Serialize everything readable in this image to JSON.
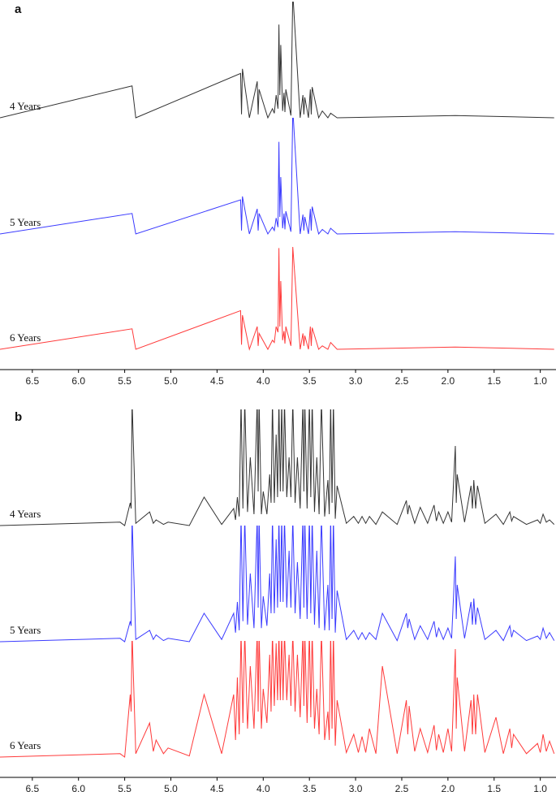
{
  "chart_data": [
    {
      "type": "line",
      "title": "a",
      "x": [
        6.85,
        5.42,
        5.38,
        4.245,
        4.235,
        4.225,
        4.15,
        4.065,
        4.055,
        4.045,
        3.95,
        3.9,
        3.88,
        3.86,
        3.84,
        3.83,
        3.82,
        3.81,
        3.79,
        3.775,
        3.765,
        3.755,
        3.7,
        3.68,
        3.6,
        3.57,
        3.56,
        3.55,
        3.51,
        3.49,
        3.48,
        3.47,
        3.4,
        3.36,
        3.3,
        3.27,
        3.2,
        1.92,
        0.85
      ],
      "series": [
        {
          "name": "4 Years",
          "color": "#333333",
          "values": [
            0,
            28,
            0,
            39,
            3,
            43,
            0,
            32,
            3,
            25,
            0,
            8,
            4,
            20,
            8,
            82,
            20,
            64,
            6,
            22,
            5,
            25,
            2,
            110,
            0,
            20,
            3,
            18,
            0,
            25,
            3,
            27,
            0,
            6,
            0,
            4,
            0,
            2,
            0
          ]
        },
        {
          "name": "5 Years",
          "color": "#3a3aff",
          "values": [
            0,
            18,
            0,
            30,
            3,
            33,
            0,
            22,
            3,
            18,
            0,
            6,
            3,
            14,
            6,
            81,
            15,
            50,
            5,
            18,
            4,
            20,
            2,
            110,
            0,
            17,
            3,
            15,
            0,
            22,
            3,
            24,
            0,
            4,
            0,
            5,
            0,
            2,
            0
          ]
        },
        {
          "name": "6 Years",
          "color": "#ff3a3a",
          "values": [
            0,
            18,
            0,
            34,
            4,
            30,
            0,
            20,
            3,
            14,
            0,
            8,
            6,
            20,
            15,
            89,
            20,
            60,
            8,
            16,
            5,
            20,
            3,
            90,
            0,
            14,
            3,
            12,
            0,
            20,
            3,
            19,
            0,
            3,
            0,
            6,
            0,
            2,
            0
          ]
        }
      ],
      "xlim": [
        6.85,
        0.83
      ],
      "ylim": [
        0,
        100
      ],
      "xticks": [
        6.5,
        {
          "value": 6,
          "label": "6.0"
        },
        5.5,
        {
          "value": 5,
          "label": "5.0"
        },
        4.5,
        {
          "value": 4,
          "label": "4.0"
        },
        3.5,
        {
          "value": 3,
          "label": "3.0"
        },
        2.5,
        {
          "value": 2,
          "label": "2.0"
        },
        1.5,
        {
          "value": 1,
          "label": "1.0"
        }
      ]
    },
    {
      "type": "line",
      "title": "b",
      "x": [
        6.85,
        5.55,
        5.5,
        5.44,
        5.43,
        5.42,
        5.38,
        5.23,
        5.19,
        5.16,
        5.08,
        5.03,
        4.8,
        4.64,
        4.45,
        4.32,
        4.3,
        4.28,
        4.26,
        4.24,
        4.22,
        4.2,
        4.17,
        4.14,
        4.1,
        4.065,
        4.055,
        4.045,
        4.02,
        4.0,
        3.96,
        3.93,
        3.915,
        3.9,
        3.88,
        3.86,
        3.845,
        3.83,
        3.815,
        3.8,
        3.785,
        3.77,
        3.745,
        3.72,
        3.7,
        3.68,
        3.655,
        3.63,
        3.6,
        3.57,
        3.56,
        3.55,
        3.525,
        3.5,
        3.485,
        3.47,
        3.445,
        3.42,
        3.395,
        3.37,
        3.335,
        3.3,
        3.285,
        3.27,
        3.255,
        3.24,
        3.22,
        3.2,
        3.1,
        3.02,
        2.97,
        2.93,
        2.89,
        2.85,
        2.78,
        2.71,
        2.55,
        2.45,
        2.435,
        2.42,
        2.36,
        2.3,
        2.22,
        2.15,
        2.125,
        2.1,
        2.05,
        2.0,
        1.96,
        1.92,
        1.91,
        1.9,
        1.82,
        1.75,
        1.735,
        1.72,
        1.7,
        1.68,
        1.6,
        1.48,
        1.4,
        1.33,
        1.31,
        1.29,
        1.15,
        1.03,
        1.0,
        0.97,
        0.935,
        0.9,
        0.85
      ],
      "series": [
        {
          "name": "4 Years",
          "color": "#333333",
          "values": [
            0,
            3,
            0,
            20,
            15,
            110,
            2,
            12,
            2,
            5,
            1,
            3,
            0,
            25,
            1,
            15,
            5,
            25,
            8,
            110,
            15,
            110,
            12,
            60,
            10,
            110,
            30,
            110,
            10,
            30,
            10,
            45,
            20,
            110,
            20,
            80,
            25,
            110,
            30,
            110,
            30,
            110,
            25,
            60,
            25,
            110,
            20,
            60,
            15,
            110,
            30,
            110,
            15,
            110,
            25,
            110,
            12,
            60,
            10,
            110,
            8,
            40,
            10,
            110,
            20,
            110,
            6,
            35,
            2,
            8,
            2,
            8,
            2,
            8,
            1,
            12,
            1,
            22,
            10,
            18,
            2,
            16,
            2,
            18,
            4,
            12,
            2,
            12,
            3,
            70,
            20,
            45,
            3,
            35,
            15,
            40,
            15,
            35,
            2,
            10,
            1,
            12,
            4,
            8,
            1,
            5,
            2,
            10,
            3,
            5,
            1
          ]
        },
        {
          "name": "5 Years",
          "color": "#3a3aff",
          "values": [
            0,
            3,
            0,
            18,
            14,
            110,
            2,
            10,
            2,
            6,
            1,
            3,
            0,
            25,
            2,
            25,
            8,
            35,
            10,
            110,
            18,
            110,
            15,
            60,
            12,
            110,
            30,
            110,
            12,
            40,
            14,
            60,
            25,
            110,
            25,
            90,
            30,
            110,
            35,
            110,
            35,
            110,
            30,
            80,
            30,
            110,
            25,
            70,
            20,
            110,
            30,
            110,
            20,
            110,
            25,
            110,
            15,
            80,
            12,
            110,
            10,
            50,
            10,
            110,
            20,
            110,
            8,
            45,
            2,
            10,
            2,
            8,
            2,
            8,
            2,
            25,
            1,
            25,
            12,
            20,
            2,
            14,
            2,
            18,
            4,
            12,
            2,
            12,
            3,
            75,
            20,
            50,
            3,
            35,
            15,
            38,
            15,
            30,
            2,
            10,
            1,
            14,
            4,
            10,
            1,
            5,
            2,
            12,
            3,
            8,
            1
          ]
        },
        {
          "name": "6 Years",
          "color": "#ff3a3a",
          "values": [
            0,
            3,
            0,
            55,
            40,
            110,
            3,
            30,
            5,
            15,
            3,
            8,
            1,
            55,
            3,
            55,
            15,
            70,
            20,
            110,
            30,
            110,
            25,
            80,
            25,
            110,
            40,
            110,
            25,
            60,
            30,
            90,
            40,
            110,
            45,
            100,
            50,
            110,
            50,
            110,
            50,
            110,
            50,
            90,
            45,
            110,
            40,
            90,
            35,
            110,
            45,
            110,
            30,
            110,
            35,
            110,
            25,
            60,
            20,
            110,
            15,
            40,
            15,
            110,
            25,
            110,
            10,
            50,
            4,
            20,
            4,
            18,
            4,
            25,
            3,
            80,
            3,
            50,
            20,
            45,
            5,
            25,
            4,
            28,
            6,
            20,
            4,
            25,
            5,
            95,
            25,
            70,
            5,
            50,
            20,
            55,
            20,
            55,
            4,
            35,
            3,
            25,
            8,
            20,
            3,
            12,
            4,
            20,
            5,
            14,
            3
          ]
        }
      ],
      "xlim": [
        6.85,
        0.83
      ],
      "ylim": [
        0,
        100
      ],
      "xticks": [
        6.5,
        {
          "value": 6,
          "label": "6.0"
        },
        5.5,
        {
          "value": 5,
          "label": "5.0"
        },
        4.5,
        {
          "value": 4,
          "label": "4.0"
        },
        3.5,
        {
          "value": 3,
          "label": "3.0"
        },
        2.5,
        {
          "value": 2,
          "label": "2.0"
        },
        1.5,
        {
          "value": 1,
          "label": "1.0"
        }
      ]
    }
  ]
}
